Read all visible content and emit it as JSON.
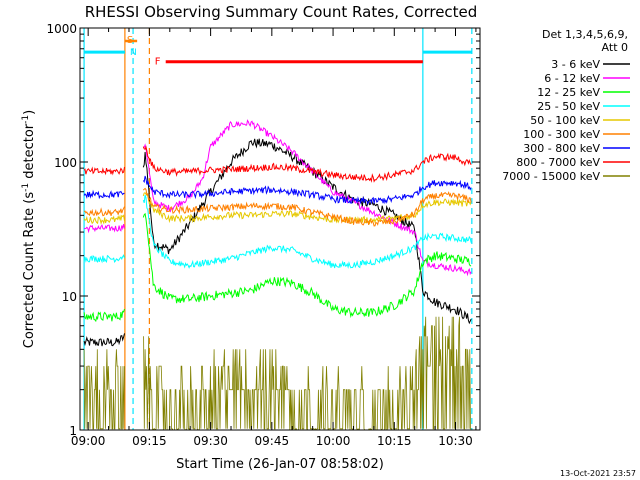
{
  "chart_data": {
    "type": "line",
    "title": "RHESSI Observing Summary Count Rates, Corrected",
    "xlabel": "Start Time (26-Jan-07 08:58:02)",
    "ylabel_main": "Corrected Count Rate (s",
    "ylabel_sup1": "-1",
    "ylabel_mid": " detector",
    "ylabel_sup2": "-1",
    "ylabel_end": ")",
    "footer": "13-Oct-2021 23:57",
    "y_scale": "log",
    "ylim": [
      1,
      1000
    ],
    "xlim": [
      "08:58",
      "10:36"
    ],
    "x_ticks": [
      "09:00",
      "09:15",
      "09:30",
      "09:45",
      "10:00",
      "10:15",
      "10:30"
    ],
    "y_ticks": [
      "1",
      "10",
      "100",
      "1000"
    ],
    "legend_header": [
      "Det 1,3,4,5,6,9,",
      "Att 0"
    ],
    "legend_position": "right",
    "markers": {
      "s": {
        "label": "S",
        "start": "09:09",
        "end": "09:12",
        "value": 800,
        "color": "#ff8000"
      },
      "n": {
        "label": "N",
        "value": 660,
        "color": "#00e5ff"
      },
      "f": {
        "label": "F",
        "start": "09:19",
        "end": "10:22",
        "value": 560,
        "color": "#ff0000"
      }
    },
    "vertical_lines": [
      {
        "time": "08:59",
        "style": "solid",
        "color": "#00e5ff"
      },
      {
        "time": "09:09",
        "style": "solid",
        "color": "#ff8000"
      },
      {
        "time": "09:11",
        "style": "dashed",
        "color": "#00e5ff"
      },
      {
        "time": "09:15",
        "style": "dashed",
        "color": "#ff8000"
      },
      {
        "time": "10:22",
        "style": "solid",
        "color": "#00e5ff"
      },
      {
        "time": "10:34",
        "style": "dashed",
        "color": "#00e5ff"
      }
    ],
    "cyan_top_bars": [
      {
        "start": "08:59",
        "end": "09:09",
        "value": 660
      },
      {
        "start": "10:22",
        "end": "10:34",
        "value": 660
      }
    ],
    "gaps": [
      [
        "09:09",
        "09:14"
      ]
    ],
    "series": [
      {
        "name": "3 - 6 keV",
        "color": "#000000",
        "x": [
          "08:59",
          "09:04",
          "09:07",
          "09:09",
          "09:14",
          "09:16",
          "09:20",
          "09:25",
          "09:30",
          "09:35",
          "09:40",
          "09:45",
          "09:50",
          "09:55",
          "10:00",
          "10:05",
          "10:10",
          "10:15",
          "10:20",
          "10:22",
          "10:25",
          "10:30",
          "10:34"
        ],
        "y": [
          4.5,
          4.5,
          4.5,
          5,
          120,
          25,
          22,
          35,
          60,
          100,
          140,
          135,
          110,
          85,
          65,
          52,
          48,
          40,
          32,
          11,
          9,
          8,
          6.5
        ]
      },
      {
        "name": "6 - 12 keV",
        "color": "#ff00ff",
        "x": [
          "08:59",
          "09:04",
          "09:07",
          "09:09",
          "09:14",
          "09:16",
          "09:20",
          "09:25",
          "09:28",
          "09:30",
          "09:35",
          "09:40",
          "09:45",
          "09:50",
          "09:55",
          "10:00",
          "10:05",
          "10:10",
          "10:15",
          "10:20",
          "10:22",
          "10:25",
          "10:30",
          "10:34"
        ],
        "y": [
          32,
          32,
          32,
          33,
          140,
          50,
          45,
          55,
          75,
          130,
          190,
          195,
          155,
          120,
          85,
          60,
          50,
          42,
          35,
          30,
          18,
          17,
          16,
          15
        ]
      },
      {
        "name": "12 - 25 keV",
        "color": "#00ff00",
        "x": [
          "08:59",
          "09:04",
          "09:07",
          "09:09",
          "09:14",
          "09:16",
          "09:20",
          "09:25",
          "09:30",
          "09:35",
          "09:40",
          "09:45",
          "09:50",
          "09:55",
          "10:00",
          "10:05",
          "10:10",
          "10:15",
          "10:20",
          "10:22",
          "10:25",
          "10:30",
          "10:34"
        ],
        "y": [
          7,
          7,
          7,
          7.5,
          45,
          12,
          9.5,
          9.5,
          10,
          10.5,
          11,
          13,
          12.5,
          10.5,
          8,
          7.5,
          7.5,
          8.5,
          11,
          18,
          20,
          19,
          18
        ]
      },
      {
        "name": "25 - 50 keV",
        "color": "#00ffff",
        "x": [
          "08:59",
          "09:04",
          "09:07",
          "09:09",
          "09:14",
          "09:16",
          "09:20",
          "09:25",
          "09:30",
          "09:35",
          "09:40",
          "09:45",
          "09:50",
          "09:55",
          "10:00",
          "10:05",
          "10:10",
          "10:15",
          "10:20",
          "10:22",
          "10:25",
          "10:30",
          "10:34"
        ],
        "y": [
          19,
          19,
          19,
          20,
          55,
          24,
          18,
          17,
          18,
          19,
          21,
          23,
          22,
          19,
          17,
          17,
          18,
          20,
          23,
          27,
          28,
          27,
          26
        ]
      },
      {
        "name": "50 - 100 keV",
        "color": "#e6c800",
        "x": [
          "08:59",
          "09:04",
          "09:07",
          "09:09",
          "09:14",
          "09:16",
          "09:20",
          "09:25",
          "09:30",
          "09:35",
          "09:40",
          "09:45",
          "09:50",
          "09:55",
          "10:00",
          "10:05",
          "10:10",
          "10:15",
          "10:20",
          "10:22",
          "10:25",
          "10:30",
          "10:34"
        ],
        "y": [
          37,
          37,
          37,
          38,
          60,
          44,
          38,
          38,
          39,
          40,
          40,
          41,
          41,
          39,
          37,
          37,
          37,
          38,
          40,
          48,
          50,
          50,
          48
        ]
      },
      {
        "name": "100 - 300 keV",
        "color": "#ff8000",
        "x": [
          "08:59",
          "09:04",
          "09:07",
          "09:09",
          "09:14",
          "09:16",
          "09:20",
          "09:25",
          "09:30",
          "09:35",
          "09:40",
          "09:45",
          "09:50",
          "09:55",
          "10:00",
          "10:05",
          "10:10",
          "10:15",
          "10:20",
          "10:22",
          "10:25",
          "10:30",
          "10:34"
        ],
        "y": [
          42,
          42,
          42,
          44,
          62,
          46,
          44,
          44,
          45,
          46,
          47,
          47,
          46,
          42,
          39,
          36,
          35,
          36,
          41,
          52,
          56,
          56,
          52
        ]
      },
      {
        "name": "300 - 800 keV",
        "color": "#0000ff",
        "x": [
          "08:59",
          "09:04",
          "09:07",
          "09:09",
          "09:14",
          "09:16",
          "09:20",
          "09:25",
          "09:30",
          "09:35",
          "09:40",
          "09:45",
          "09:50",
          "09:55",
          "10:00",
          "10:05",
          "10:10",
          "10:15",
          "10:20",
          "10:22",
          "10:25",
          "10:30",
          "10:34"
        ],
        "y": [
          57,
          57,
          57,
          58,
          75,
          60,
          57,
          57,
          58,
          60,
          61,
          62,
          60,
          57,
          53,
          51,
          51,
          53,
          57,
          65,
          70,
          70,
          65
        ]
      },
      {
        "name": "800 - 7000 keV",
        "color": "#ff0000",
        "x": [
          "08:59",
          "09:04",
          "09:07",
          "09:09",
          "09:14",
          "09:16",
          "09:20",
          "09:25",
          "09:30",
          "09:35",
          "09:40",
          "09:45",
          "09:50",
          "09:55",
          "10:00",
          "10:05",
          "10:10",
          "10:15",
          "10:20",
          "10:22",
          "10:25",
          "10:30",
          "10:34"
        ],
        "y": [
          85,
          85,
          85,
          88,
          130,
          90,
          84,
          85,
          87,
          88,
          90,
          92,
          90,
          85,
          80,
          77,
          76,
          80,
          87,
          100,
          110,
          108,
          95
        ]
      },
      {
        "name": "7000 - 15000 keV",
        "color": "#808000",
        "x": [
          "08:59",
          "09:04",
          "09:07",
          "09:09",
          "09:14",
          "09:16",
          "09:20",
          "09:25",
          "09:30",
          "09:35",
          "09:40",
          "09:45",
          "09:50",
          "09:55",
          "10:00",
          "10:05",
          "10:10",
          "10:15",
          "10:20",
          "10:22",
          "10:25",
          "10:30",
          "10:34"
        ],
        "y": [
          2.5,
          2.5,
          2.5,
          2.5,
          3.5,
          2.0,
          1.6,
          1.7,
          2.1,
          2.6,
          2.6,
          2.6,
          2.2,
          1.7,
          1.6,
          1.6,
          1.6,
          1.8,
          2.4,
          4.0,
          4.5,
          4.5,
          4.2
        ]
      }
    ]
  }
}
